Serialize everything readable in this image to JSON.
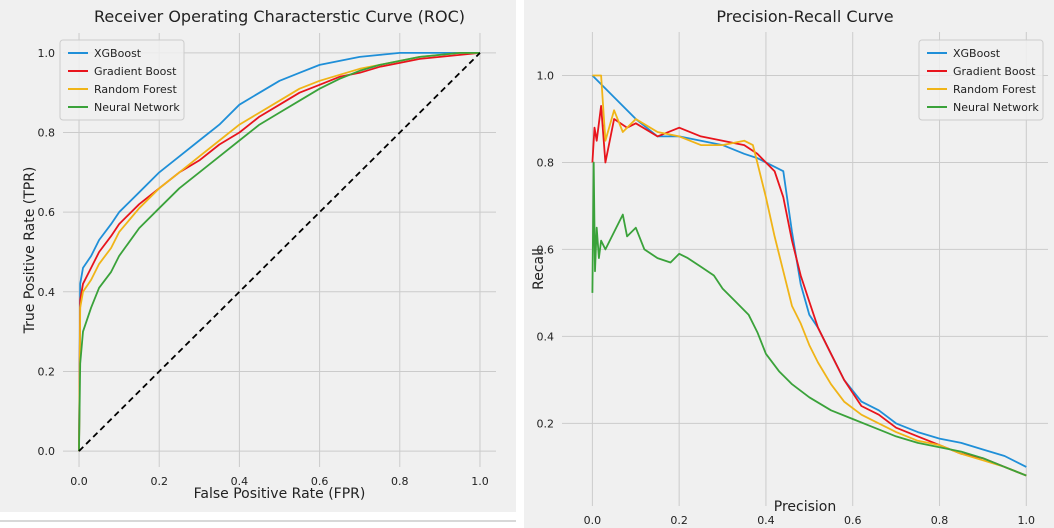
{
  "chart_data": [
    {
      "type": "line",
      "title": "Receiver Operating Characterstic Curve (ROC)",
      "xlabel": "False Positive Rate (FPR)",
      "ylabel": "True Positive Rate (TPR)",
      "xlim": [
        -0.04,
        1.04
      ],
      "ylim": [
        -0.04,
        1.05
      ],
      "xticks": [
        "0.0",
        "0.2",
        "0.4",
        "0.6",
        "0.8",
        "1.0"
      ],
      "yticks": [
        "0.0",
        "0.2",
        "0.4",
        "0.6",
        "0.8",
        "1.0"
      ],
      "grid": true,
      "legend_position": "top-left",
      "series": [
        {
          "name": "XGBoost",
          "color": "#1f8fd8",
          "x": [
            0,
            0.003,
            0.01,
            0.03,
            0.05,
            0.08,
            0.1,
            0.15,
            0.2,
            0.25,
            0.3,
            0.35,
            0.4,
            0.45,
            0.5,
            0.55,
            0.6,
            0.65,
            0.7,
            0.75,
            0.8,
            0.85,
            0.9,
            0.95,
            1.0
          ],
          "y": [
            0,
            0.42,
            0.46,
            0.49,
            0.53,
            0.57,
            0.6,
            0.65,
            0.7,
            0.74,
            0.78,
            0.82,
            0.87,
            0.9,
            0.93,
            0.95,
            0.97,
            0.98,
            0.99,
            0.995,
            1.0,
            1.0,
            1.0,
            1.0,
            1.0
          ]
        },
        {
          "name": "Gradient Boost",
          "color": "#e8141c",
          "x": [
            0,
            0.003,
            0.01,
            0.03,
            0.05,
            0.08,
            0.1,
            0.15,
            0.2,
            0.25,
            0.3,
            0.35,
            0.4,
            0.45,
            0.5,
            0.55,
            0.6,
            0.65,
            0.7,
            0.75,
            0.8,
            0.85,
            0.9,
            0.95,
            1.0
          ],
          "y": [
            0,
            0.38,
            0.42,
            0.46,
            0.5,
            0.54,
            0.57,
            0.62,
            0.66,
            0.7,
            0.73,
            0.77,
            0.8,
            0.84,
            0.87,
            0.9,
            0.92,
            0.94,
            0.95,
            0.965,
            0.975,
            0.985,
            0.99,
            0.995,
            1.0
          ]
        },
        {
          "name": "Random Forest",
          "color": "#f0b417",
          "x": [
            0,
            0.003,
            0.01,
            0.03,
            0.05,
            0.08,
            0.1,
            0.15,
            0.2,
            0.25,
            0.3,
            0.35,
            0.4,
            0.45,
            0.5,
            0.55,
            0.6,
            0.65,
            0.7,
            0.75,
            0.8,
            0.85,
            0.9,
            0.95,
            1.0
          ],
          "y": [
            0,
            0.36,
            0.4,
            0.43,
            0.47,
            0.51,
            0.55,
            0.61,
            0.66,
            0.7,
            0.74,
            0.78,
            0.82,
            0.85,
            0.88,
            0.91,
            0.93,
            0.945,
            0.96,
            0.97,
            0.98,
            0.99,
            0.995,
            1.0,
            1.0
          ]
        },
        {
          "name": "Neural Network",
          "color": "#3aa23a",
          "x": [
            0,
            0.003,
            0.01,
            0.03,
            0.05,
            0.08,
            0.1,
            0.15,
            0.2,
            0.25,
            0.3,
            0.35,
            0.4,
            0.45,
            0.5,
            0.55,
            0.6,
            0.65,
            0.7,
            0.75,
            0.8,
            0.85,
            0.9,
            0.95,
            1.0
          ],
          "y": [
            0,
            0.22,
            0.3,
            0.36,
            0.41,
            0.45,
            0.49,
            0.56,
            0.61,
            0.66,
            0.7,
            0.74,
            0.78,
            0.82,
            0.85,
            0.88,
            0.91,
            0.935,
            0.955,
            0.97,
            0.98,
            0.99,
            0.995,
            1.0,
            1.0
          ]
        },
        {
          "name": "",
          "color": "#000000",
          "dashed": true,
          "x": [
            0,
            1
          ],
          "y": [
            0,
            1
          ]
        }
      ]
    },
    {
      "type": "line",
      "title": "Precision-Recall Curve",
      "xlabel": "Precision",
      "ylabel": "Recall",
      "xlim": [
        -0.07,
        1.05
      ],
      "ylim": [
        0.01,
        1.1
      ],
      "xticks": [
        "0.0",
        "0.2",
        "0.4",
        "0.6",
        "0.8",
        "1.0"
      ],
      "yticks": [
        "0.2",
        "0.4",
        "0.6",
        "0.8",
        "1.0"
      ],
      "grid": true,
      "legend_position": "top-right",
      "series": [
        {
          "name": "XGBoost",
          "color": "#1f8fd8",
          "x": [
            0,
            0.05,
            0.1,
            0.15,
            0.2,
            0.25,
            0.3,
            0.35,
            0.38,
            0.42,
            0.44,
            0.46,
            0.48,
            0.5,
            0.52,
            0.55,
            0.58,
            0.62,
            0.66,
            0.7,
            0.75,
            0.8,
            0.85,
            0.9,
            0.95,
            1.0
          ],
          "y": [
            1.0,
            0.95,
            0.9,
            0.86,
            0.86,
            0.85,
            0.84,
            0.82,
            0.81,
            0.79,
            0.78,
            0.64,
            0.52,
            0.45,
            0.42,
            0.36,
            0.3,
            0.25,
            0.23,
            0.2,
            0.18,
            0.165,
            0.155,
            0.14,
            0.125,
            0.1
          ]
        },
        {
          "name": "Gradient Boost",
          "color": "#e8141c",
          "x": [
            0,
            0.005,
            0.01,
            0.02,
            0.03,
            0.05,
            0.08,
            0.1,
            0.15,
            0.2,
            0.25,
            0.3,
            0.35,
            0.38,
            0.4,
            0.42,
            0.44,
            0.46,
            0.48,
            0.5,
            0.52,
            0.55,
            0.58,
            0.62,
            0.66,
            0.7,
            0.75,
            0.8,
            0.85,
            0.9,
            0.95,
            1.0
          ],
          "y": [
            0.8,
            0.88,
            0.85,
            0.93,
            0.8,
            0.9,
            0.88,
            0.89,
            0.86,
            0.88,
            0.86,
            0.85,
            0.84,
            0.82,
            0.8,
            0.78,
            0.72,
            0.62,
            0.54,
            0.48,
            0.42,
            0.36,
            0.3,
            0.24,
            0.22,
            0.19,
            0.17,
            0.15,
            0.13,
            0.12,
            0.1,
            0.08
          ]
        },
        {
          "name": "Random Forest",
          "color": "#f0b417",
          "x": [
            0,
            0.01,
            0.02,
            0.03,
            0.05,
            0.07,
            0.1,
            0.15,
            0.2,
            0.25,
            0.3,
            0.35,
            0.37,
            0.38,
            0.4,
            0.42,
            0.44,
            0.46,
            0.48,
            0.5,
            0.52,
            0.55,
            0.58,
            0.62,
            0.66,
            0.7,
            0.75,
            0.8,
            0.85,
            0.9,
            0.95,
            1.0
          ],
          "y": [
            1.0,
            1.0,
            1.0,
            0.85,
            0.92,
            0.87,
            0.9,
            0.87,
            0.86,
            0.84,
            0.84,
            0.85,
            0.84,
            0.8,
            0.72,
            0.63,
            0.55,
            0.47,
            0.43,
            0.38,
            0.34,
            0.29,
            0.25,
            0.22,
            0.2,
            0.18,
            0.16,
            0.15,
            0.13,
            0.115,
            0.1,
            0.08
          ]
        },
        {
          "name": "Neural Network",
          "color": "#3aa23a",
          "x": [
            0,
            0.003,
            0.006,
            0.01,
            0.015,
            0.02,
            0.03,
            0.05,
            0.07,
            0.08,
            0.1,
            0.12,
            0.15,
            0.18,
            0.2,
            0.22,
            0.25,
            0.28,
            0.3,
            0.33,
            0.36,
            0.38,
            0.4,
            0.43,
            0.46,
            0.5,
            0.55,
            0.6,
            0.65,
            0.7,
            0.75,
            0.8,
            0.85,
            0.9,
            0.95,
            1.0
          ],
          "y": [
            0.5,
            0.8,
            0.55,
            0.65,
            0.58,
            0.62,
            0.6,
            0.64,
            0.68,
            0.63,
            0.65,
            0.6,
            0.58,
            0.57,
            0.59,
            0.58,
            0.56,
            0.54,
            0.51,
            0.48,
            0.45,
            0.41,
            0.36,
            0.32,
            0.29,
            0.26,
            0.23,
            0.21,
            0.19,
            0.17,
            0.155,
            0.145,
            0.135,
            0.12,
            0.1,
            0.08
          ]
        }
      ]
    }
  ]
}
